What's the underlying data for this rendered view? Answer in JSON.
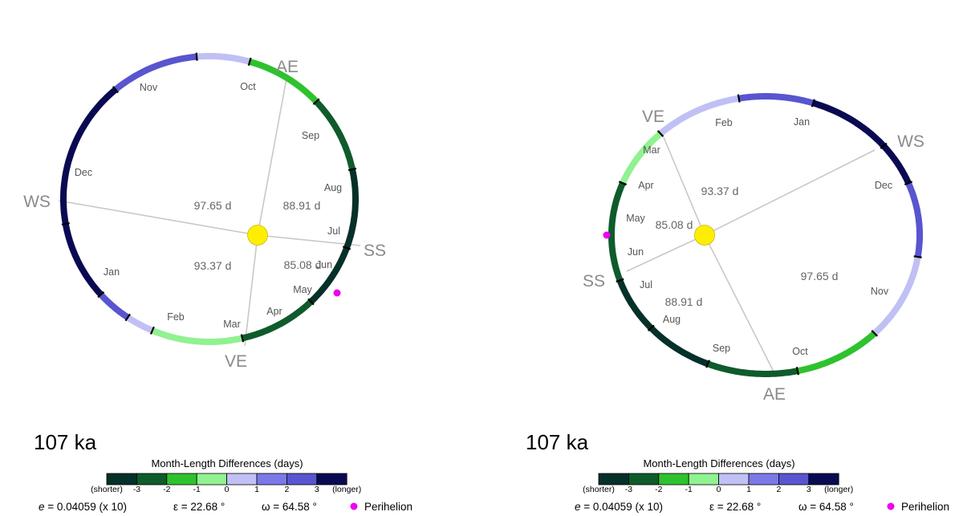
{
  "colors": {
    "-3": "#06302a",
    "-2": "#0f5b2c",
    "-1": "#2ec22e",
    "0": "#90f290",
    "1": "#c0c0f5",
    "2": "#5855cf",
    "3": "#0a0a52",
    "perihelion": "#ee00ee",
    "sun": "#ffee00"
  },
  "panels": [
    {
      "age": "107 ka",
      "seasons": [
        {
          "name": "VE"
        },
        {
          "name": "SS"
        },
        {
          "name": "AE"
        },
        {
          "name": "WS"
        }
      ],
      "quadrant_days": [
        "85.08 d",
        "88.91 d",
        "97.65 d",
        "93.37 d"
      ],
      "months": [
        {
          "name": "Mar",
          "level": "0"
        },
        {
          "name": "Apr",
          "level": "-2"
        },
        {
          "name": "May",
          "level": "-3"
        },
        {
          "name": "Jun",
          "level": "-3"
        },
        {
          "name": "Jul",
          "level": "-2"
        },
        {
          "name": "Aug",
          "level": "-1"
        },
        {
          "name": "Sep",
          "level": "1"
        },
        {
          "name": "Oct",
          "level": "2"
        },
        {
          "name": "Nov",
          "level": "3"
        },
        {
          "name": "Dec",
          "level": "3"
        },
        {
          "name": "Jan",
          "level": "2"
        },
        {
          "name": "Feb",
          "level": "1"
        }
      ]
    },
    {
      "age": "107 ka",
      "seasons": [
        {
          "name": "VE"
        },
        {
          "name": "SS"
        },
        {
          "name": "AE"
        },
        {
          "name": "WS"
        }
      ],
      "quadrant_days": [
        "85.08 d",
        "88.91 d",
        "97.65 d",
        "93.37 d"
      ],
      "months": [
        {
          "name": "Mar",
          "level": "0"
        },
        {
          "name": "Apr",
          "level": "-2"
        },
        {
          "name": "May",
          "level": "-3"
        },
        {
          "name": "Jun",
          "level": "-3"
        },
        {
          "name": "Jul",
          "level": "-2"
        },
        {
          "name": "Aug",
          "level": "-1"
        },
        {
          "name": "Sep",
          "level": "1"
        },
        {
          "name": "Oct",
          "level": "2"
        },
        {
          "name": "Nov",
          "level": "3"
        },
        {
          "name": "Dec",
          "level": "3"
        },
        {
          "name": "Jan",
          "level": "2"
        },
        {
          "name": "Feb",
          "level": "1"
        }
      ]
    }
  ],
  "legend": {
    "title": "Month-Length Differences (days)",
    "shorter": "(shorter)",
    "longer": "(longer)",
    "ticks": [
      "-3",
      "-2",
      "-1",
      "0",
      "1",
      "2",
      "3"
    ],
    "bins": [
      "-3",
      "-2",
      "-1",
      "0",
      "1",
      "2",
      "3"
    ]
  },
  "params": {
    "e_symbol": "e",
    "e_text": " = 0.04059 (x 10)",
    "epsilon": "ε = 22.68 °",
    "omega": "ω = 64.58 °",
    "perihelion": "Perihelion"
  }
}
